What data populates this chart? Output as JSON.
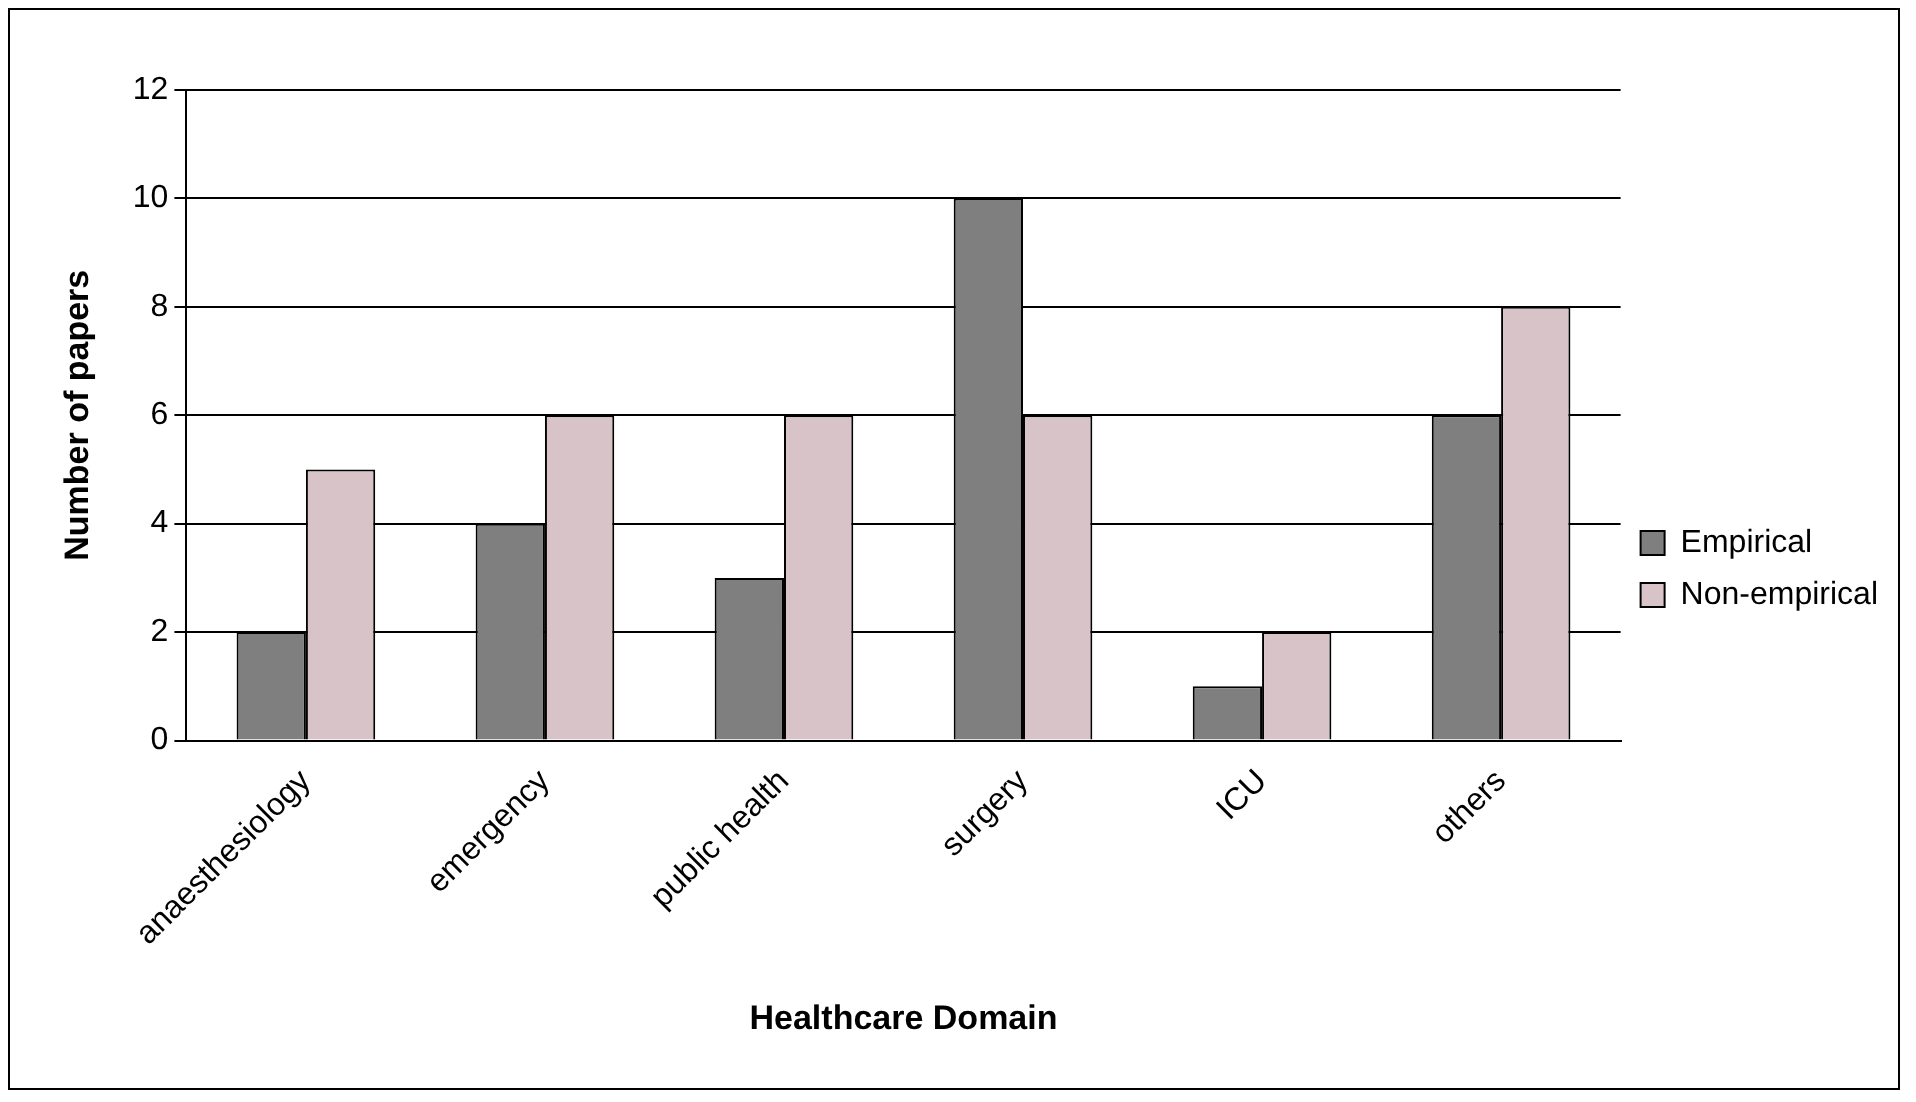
{
  "chart_data": {
    "type": "bar",
    "xlabel": "Healthcare Domain",
    "ylabel": "Number of papers",
    "categories": [
      "anaesthesiology",
      "emergency",
      "public health",
      "surgery",
      "ICU",
      "others"
    ],
    "series": [
      {
        "name": "Empirical",
        "color": "#7f7f7f",
        "values": [
          2,
          4,
          3,
          10,
          1,
          6
        ]
      },
      {
        "name": "Non-empirical",
        "color": "#d8c4c8",
        "values": [
          5,
          6,
          6,
          6,
          2,
          8
        ]
      }
    ],
    "ylim": [
      0,
      12
    ],
    "yticks": [
      0,
      2,
      4,
      6,
      8,
      10,
      12
    ],
    "grid": "y",
    "legend": "right"
  }
}
